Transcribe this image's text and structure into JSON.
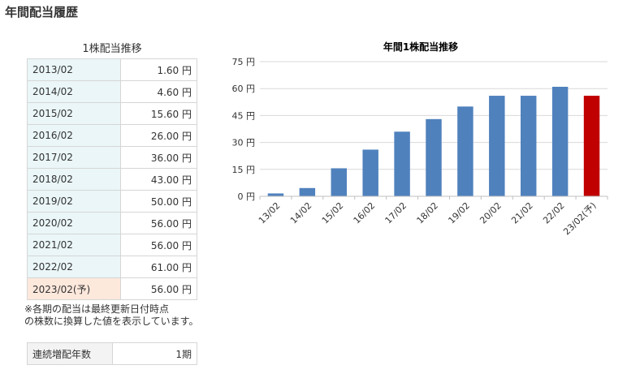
{
  "page_title": "年間配当履歴",
  "table": {
    "title": "1株配当推移",
    "rows": [
      {
        "year": "2013/02",
        "value": "1.60 円"
      },
      {
        "year": "2014/02",
        "value": "4.60 円"
      },
      {
        "year": "2015/02",
        "value": "15.60 円"
      },
      {
        "year": "2016/02",
        "value": "26.00 円"
      },
      {
        "year": "2017/02",
        "value": "36.00 円"
      },
      {
        "year": "2018/02",
        "value": "43.00 円"
      },
      {
        "year": "2019/02",
        "value": "50.00 円"
      },
      {
        "year": "2020/02",
        "value": "56.00 円"
      },
      {
        "year": "2021/02",
        "value": "56.00 円"
      },
      {
        "year": "2022/02",
        "value": "61.00 円"
      },
      {
        "year": "2023/02(予)",
        "value": "56.00 円"
      }
    ]
  },
  "note_line1": "※各期の配当は最終更新日付時点",
  "note_line2": "の株数に換算した値を表示しています。",
  "streak": {
    "label": "連続増配年数",
    "value": "1期"
  },
  "chart_data": {
    "type": "bar",
    "title": "年間1株配当推移",
    "categories": [
      "13/02",
      "14/02",
      "15/02",
      "16/02",
      "17/02",
      "18/02",
      "19/02",
      "20/02",
      "21/02",
      "22/02",
      "23/02(予)"
    ],
    "values": [
      1.6,
      4.6,
      15.6,
      26,
      36,
      43,
      50,
      56,
      56,
      61,
      56
    ],
    "ylim": [
      0,
      75
    ],
    "yticks": [
      0,
      15,
      30,
      45,
      60,
      75
    ],
    "ytick_suffix": " 円",
    "bar_color": "#4f81bd",
    "forecast_color": "#c00000",
    "grid": true
  }
}
